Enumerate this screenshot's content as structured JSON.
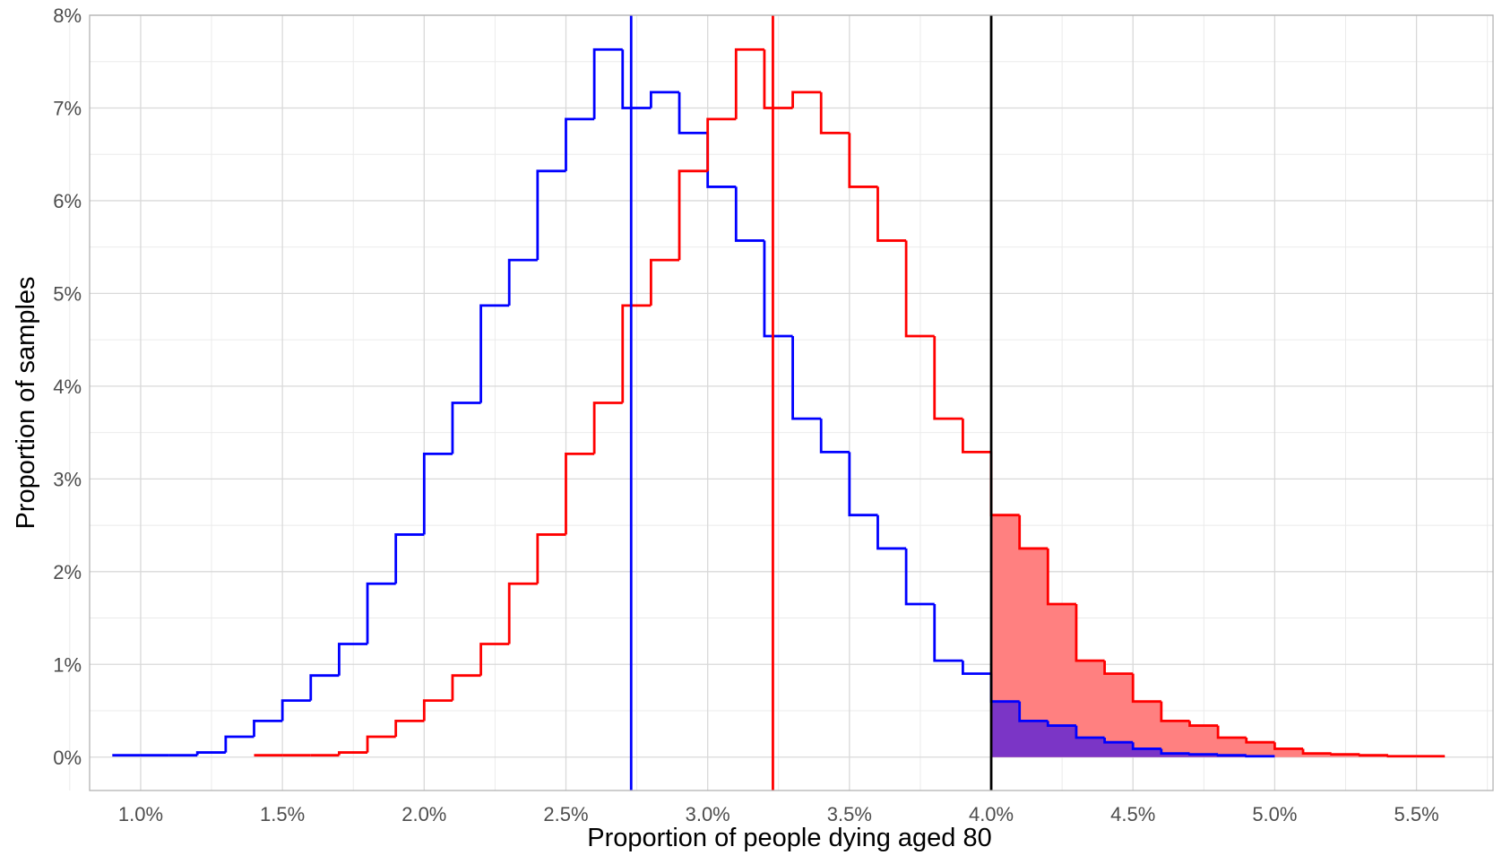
{
  "chart_data": {
    "type": "histogram-step",
    "xlabel": "Proportion of people dying aged 80",
    "ylabel": "Proportion of samples",
    "xlim": [
      0.0082,
      0.0577
    ],
    "ylim": [
      -0.0036,
      0.08
    ],
    "x_ticks": [
      0.01,
      0.015,
      0.02,
      0.025,
      0.03,
      0.035,
      0.04,
      0.045,
      0.05,
      0.055
    ],
    "x_tick_labels": [
      "1.0%",
      "1.5%",
      "2.0%",
      "2.5%",
      "3.0%",
      "3.5%",
      "4.0%",
      "4.5%",
      "5.0%",
      "5.5%"
    ],
    "y_ticks": [
      0,
      0.01,
      0.02,
      0.03,
      0.04,
      0.05,
      0.06,
      0.07,
      0.08
    ],
    "y_tick_labels": [
      "0%",
      "1%",
      "2%",
      "3%",
      "4%",
      "5%",
      "6%",
      "7%",
      "8%"
    ],
    "grid": true,
    "bin_width": 0.001,
    "series": [
      {
        "color": "#0000ff",
        "bin_starts": [
          0.009,
          0.01,
          0.011,
          0.012,
          0.013,
          0.014,
          0.015,
          0.016,
          0.017,
          0.018,
          0.019,
          0.02,
          0.021,
          0.022,
          0.023,
          0.024,
          0.025,
          0.026,
          0.027,
          0.028,
          0.029,
          0.03,
          0.031,
          0.032,
          0.033,
          0.034,
          0.035,
          0.036,
          0.037,
          0.038,
          0.039,
          0.04,
          0.041,
          0.042,
          0.043,
          0.044,
          0.045,
          0.046,
          0.047,
          0.048,
          0.049
        ],
        "values": [
          0.0002,
          0.0002,
          0.0002,
          0.0005,
          0.0022,
          0.0039,
          0.0061,
          0.0088,
          0.0122,
          0.0187,
          0.024,
          0.0327,
          0.0382,
          0.0487,
          0.0536,
          0.0632,
          0.0688,
          0.0763,
          0.07,
          0.0717,
          0.0673,
          0.0615,
          0.0557,
          0.0454,
          0.0365,
          0.0329,
          0.0261,
          0.0225,
          0.0165,
          0.0104,
          0.009,
          0.006,
          0.0039,
          0.0034,
          0.0021,
          0.0016,
          0.0009,
          0.0004,
          0.0003,
          0.0002,
          0.0001
        ],
        "mean_line": 0.0273
      },
      {
        "color": "#ff0000",
        "bin_starts": [
          0.014,
          0.015,
          0.016,
          0.017,
          0.018,
          0.019,
          0.02,
          0.021,
          0.022,
          0.023,
          0.024,
          0.025,
          0.026,
          0.027,
          0.028,
          0.029,
          0.03,
          0.031,
          0.032,
          0.033,
          0.034,
          0.035,
          0.036,
          0.037,
          0.038,
          0.039,
          0.04,
          0.041,
          0.042,
          0.043,
          0.044,
          0.045,
          0.046,
          0.047,
          0.048,
          0.049,
          0.05,
          0.051,
          0.052,
          0.053,
          0.054,
          0.055
        ],
        "values": [
          0.0002,
          0.0002,
          0.0002,
          0.0005,
          0.0022,
          0.0039,
          0.0061,
          0.0088,
          0.0122,
          0.0187,
          0.024,
          0.0327,
          0.0382,
          0.0487,
          0.0536,
          0.0632,
          0.0688,
          0.0763,
          0.07,
          0.0717,
          0.0673,
          0.0615,
          0.0557,
          0.0454,
          0.0365,
          0.0329,
          0.0261,
          0.0225,
          0.0165,
          0.0104,
          0.009,
          0.006,
          0.0039,
          0.0034,
          0.0021,
          0.0016,
          0.0009,
          0.0004,
          0.0003,
          0.0002,
          0.0001,
          0.0001
        ],
        "mean_line": 0.0323
      }
    ],
    "threshold_line": {
      "x": 0.04,
      "color": "#000000"
    },
    "shaded_tail": {
      "from_x": 0.04,
      "red_fill": "#ff8080",
      "overlap_fill": "#7b35c6"
    }
  }
}
